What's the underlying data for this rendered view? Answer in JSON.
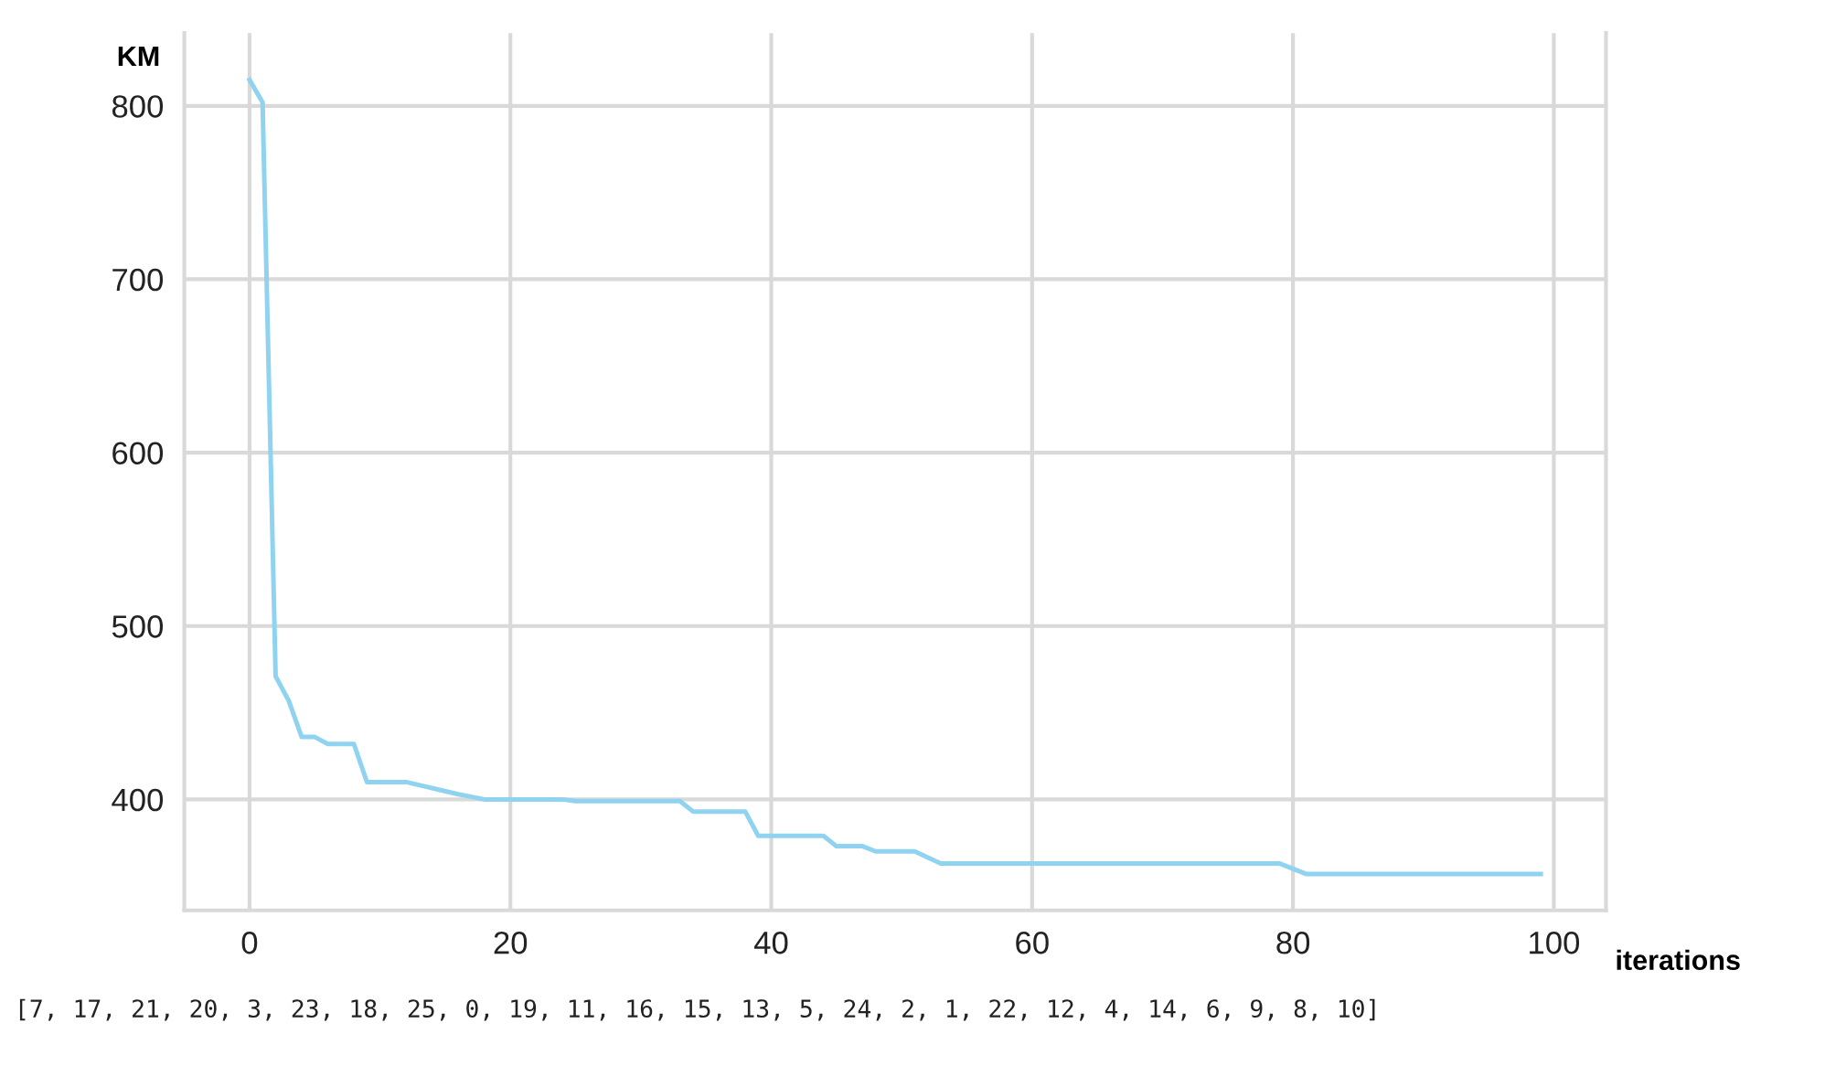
{
  "chart_data": {
    "type": "line",
    "ylabel": "KM",
    "xlabel": "iterations",
    "x": [
      0,
      1,
      2,
      3,
      4,
      5,
      6,
      8,
      9,
      12,
      16,
      18,
      20,
      24,
      25,
      33,
      34,
      38,
      39,
      44,
      45,
      47,
      48,
      51,
      53,
      65,
      79,
      81,
      99
    ],
    "values": [
      815,
      802,
      471,
      457,
      436,
      436,
      432,
      432,
      410,
      410,
      403,
      400,
      400,
      400,
      399,
      399,
      393,
      393,
      379,
      379,
      373,
      373,
      370,
      370,
      363,
      363,
      363,
      357,
      357
    ],
    "color": "#8fd3f0",
    "marker": "none",
    "line_style": "solid",
    "xlim": [
      -5,
      104
    ],
    "ylim": [
      336,
      842
    ],
    "xticks": [
      0,
      20,
      40,
      60,
      80,
      100
    ],
    "yticks": [
      400,
      500,
      600,
      700,
      800
    ],
    "grid": true,
    "legend": false,
    "annotations": [
      "[7, 17, 21, 20, 3, 23, 18, 25, 0, 19, 11, 16, 15, 13, 5, 24, 2, 1, 22, 12, 4, 14, 6, 9, 8, 10]"
    ]
  }
}
